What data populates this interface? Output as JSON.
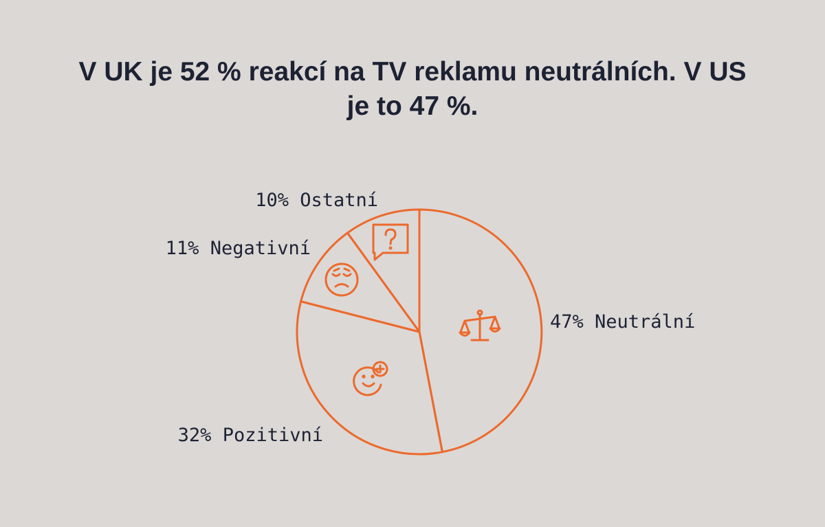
{
  "title": "V UK je 52 % reakcí na TV reklamu neutrálních. V US je to 47 %.",
  "colors": {
    "background": "#dcd8d6",
    "accent": "#ec6a2c",
    "text": "#1d2233"
  },
  "chart_data": {
    "type": "pie",
    "title": "V UK je 52 % reakcí na TV reklamu neutrálních. V US je to 47 %.",
    "slices": [
      {
        "label": "47% Neutrální",
        "value": 47,
        "icon": "scales-icon"
      },
      {
        "label": "32% Pozitivní",
        "value": 32,
        "icon": "smiley-plus-icon"
      },
      {
        "label": "11% Negativní",
        "value": 11,
        "icon": "sad-face-icon"
      },
      {
        "label": "10% Ostatní",
        "value": 10,
        "icon": "question-bubble-icon"
      }
    ]
  }
}
